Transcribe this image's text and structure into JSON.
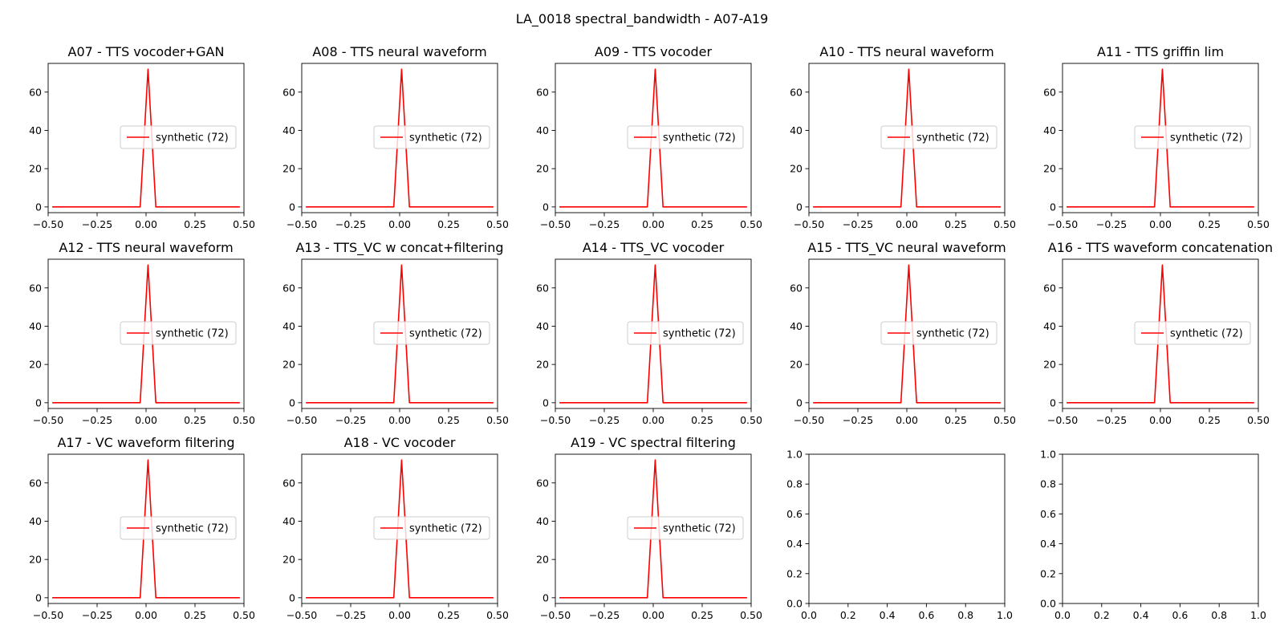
{
  "figure": {
    "suptitle": "LA_0018 spectral_bandwidth - A07-A19"
  },
  "chart_data": [
    {
      "type": "line",
      "title": "A07 - TTS vocoder+GAN",
      "xlim": [
        -0.5,
        0.5
      ],
      "ylim": [
        -3,
        75
      ],
      "xticks": [
        "−0.50",
        "−0.25",
        "0.00",
        "0.25",
        "0.50"
      ],
      "yticks": [
        "0",
        "20",
        "40",
        "60"
      ],
      "legend_position": "center-right",
      "grid": false,
      "series": [
        {
          "name": "synthetic (72)",
          "color": "#ff0000",
          "x": [
            -0.479,
            -0.031,
            -0.03,
            0.01,
            0.05,
            0.051,
            0.479
          ],
          "y": [
            0,
            0,
            0,
            72,
            0,
            0,
            0
          ]
        }
      ]
    },
    {
      "type": "line",
      "title": "A08 - TTS neural waveform",
      "xlim": [
        -0.5,
        0.5
      ],
      "ylim": [
        -3,
        75
      ],
      "xticks": [
        "−0.50",
        "−0.25",
        "0.00",
        "0.25",
        "0.50"
      ],
      "yticks": [
        "0",
        "20",
        "40",
        "60"
      ],
      "legend_position": "center-right",
      "grid": false,
      "series": [
        {
          "name": "synthetic (72)",
          "color": "#ff0000",
          "x": [
            -0.479,
            -0.031,
            -0.03,
            0.01,
            0.05,
            0.051,
            0.479
          ],
          "y": [
            0,
            0,
            0,
            72,
            0,
            0,
            0
          ]
        }
      ]
    },
    {
      "type": "line",
      "title": "A09 - TTS vocoder",
      "xlim": [
        -0.5,
        0.5
      ],
      "ylim": [
        -3,
        75
      ],
      "xticks": [
        "−0.50",
        "−0.25",
        "0.00",
        "0.25",
        "0.50"
      ],
      "yticks": [
        "0",
        "20",
        "40",
        "60"
      ],
      "legend_position": "center-right",
      "grid": false,
      "series": [
        {
          "name": "synthetic (72)",
          "color": "#ff0000",
          "x": [
            -0.479,
            -0.031,
            -0.03,
            0.01,
            0.05,
            0.051,
            0.479
          ],
          "y": [
            0,
            0,
            0,
            72,
            0,
            0,
            0
          ]
        }
      ]
    },
    {
      "type": "line",
      "title": "A10 - TTS neural waveform",
      "xlim": [
        -0.5,
        0.5
      ],
      "ylim": [
        -3,
        75
      ],
      "xticks": [
        "−0.50",
        "−0.25",
        "0.00",
        "0.25",
        "0.50"
      ],
      "yticks": [
        "0",
        "20",
        "40",
        "60"
      ],
      "legend_position": "center-right",
      "grid": false,
      "series": [
        {
          "name": "synthetic (72)",
          "color": "#ff0000",
          "x": [
            -0.479,
            -0.031,
            -0.03,
            0.01,
            0.05,
            0.051,
            0.479
          ],
          "y": [
            0,
            0,
            0,
            72,
            0,
            0,
            0
          ]
        }
      ]
    },
    {
      "type": "line",
      "title": "A11 - TTS griffin lim",
      "xlim": [
        -0.5,
        0.5
      ],
      "ylim": [
        -3,
        75
      ],
      "xticks": [
        "−0.50",
        "−0.25",
        "0.00",
        "0.25",
        "0.50"
      ],
      "yticks": [
        "0",
        "20",
        "40",
        "60"
      ],
      "legend_position": "center-right",
      "grid": false,
      "series": [
        {
          "name": "synthetic (72)",
          "color": "#ff0000",
          "x": [
            -0.479,
            -0.031,
            -0.03,
            0.01,
            0.05,
            0.051,
            0.479
          ],
          "y": [
            0,
            0,
            0,
            72,
            0,
            0,
            0
          ]
        }
      ]
    },
    {
      "type": "line",
      "title": "A12 - TTS neural waveform",
      "xlim": [
        -0.5,
        0.5
      ],
      "ylim": [
        -3,
        75
      ],
      "xticks": [
        "−0.50",
        "−0.25",
        "0.00",
        "0.25",
        "0.50"
      ],
      "yticks": [
        "0",
        "20",
        "40",
        "60"
      ],
      "legend_position": "center-right",
      "grid": false,
      "series": [
        {
          "name": "synthetic (72)",
          "color": "#ff0000",
          "x": [
            -0.479,
            -0.031,
            -0.03,
            0.01,
            0.05,
            0.051,
            0.479
          ],
          "y": [
            0,
            0,
            0,
            72,
            0,
            0,
            0
          ]
        }
      ]
    },
    {
      "type": "line",
      "title": "A13 - TTS_VC w concat+filtering",
      "xlim": [
        -0.5,
        0.5
      ],
      "ylim": [
        -3,
        75
      ],
      "xticks": [
        "−0.50",
        "−0.25",
        "0.00",
        "0.25",
        "0.50"
      ],
      "yticks": [
        "0",
        "20",
        "40",
        "60"
      ],
      "legend_position": "center-right",
      "grid": false,
      "series": [
        {
          "name": "synthetic (72)",
          "color": "#ff0000",
          "x": [
            -0.479,
            -0.031,
            -0.03,
            0.01,
            0.05,
            0.051,
            0.479
          ],
          "y": [
            0,
            0,
            0,
            72,
            0,
            0,
            0
          ]
        }
      ]
    },
    {
      "type": "line",
      "title": "A14 - TTS_VC vocoder",
      "xlim": [
        -0.5,
        0.5
      ],
      "ylim": [
        -3,
        75
      ],
      "xticks": [
        "−0.50",
        "−0.25",
        "0.00",
        "0.25",
        "0.50"
      ],
      "yticks": [
        "0",
        "20",
        "40",
        "60"
      ],
      "legend_position": "center-right",
      "grid": false,
      "series": [
        {
          "name": "synthetic (72)",
          "color": "#ff0000",
          "x": [
            -0.479,
            -0.031,
            -0.03,
            0.01,
            0.05,
            0.051,
            0.479
          ],
          "y": [
            0,
            0,
            0,
            72,
            0,
            0,
            0
          ]
        }
      ]
    },
    {
      "type": "line",
      "title": "A15 - TTS_VC neural waveform",
      "xlim": [
        -0.5,
        0.5
      ],
      "ylim": [
        -3,
        75
      ],
      "xticks": [
        "−0.50",
        "−0.25",
        "0.00",
        "0.25",
        "0.50"
      ],
      "yticks": [
        "0",
        "20",
        "40",
        "60"
      ],
      "legend_position": "center-right",
      "grid": false,
      "series": [
        {
          "name": "synthetic (72)",
          "color": "#ff0000",
          "x": [
            -0.479,
            -0.031,
            -0.03,
            0.01,
            0.05,
            0.051,
            0.479
          ],
          "y": [
            0,
            0,
            0,
            72,
            0,
            0,
            0
          ]
        }
      ]
    },
    {
      "type": "line",
      "title": "A16 - TTS waveform concatenation",
      "xlim": [
        -0.5,
        0.5
      ],
      "ylim": [
        -3,
        75
      ],
      "xticks": [
        "−0.50",
        "−0.25",
        "0.00",
        "0.25",
        "0.50"
      ],
      "yticks": [
        "0",
        "20",
        "40",
        "60"
      ],
      "legend_position": "center-right",
      "grid": false,
      "series": [
        {
          "name": "synthetic (72)",
          "color": "#ff0000",
          "x": [
            -0.479,
            -0.031,
            -0.03,
            0.01,
            0.05,
            0.051,
            0.479
          ],
          "y": [
            0,
            0,
            0,
            72,
            0,
            0,
            0
          ]
        }
      ]
    },
    {
      "type": "line",
      "title": "A17 - VC waveform filtering",
      "xlim": [
        -0.5,
        0.5
      ],
      "ylim": [
        -3,
        75
      ],
      "xticks": [
        "−0.50",
        "−0.25",
        "0.00",
        "0.25",
        "0.50"
      ],
      "yticks": [
        "0",
        "20",
        "40",
        "60"
      ],
      "legend_position": "center-right",
      "grid": false,
      "series": [
        {
          "name": "synthetic (72)",
          "color": "#ff0000",
          "x": [
            -0.479,
            -0.031,
            -0.03,
            0.01,
            0.05,
            0.051,
            0.479
          ],
          "y": [
            0,
            0,
            0,
            72,
            0,
            0,
            0
          ]
        }
      ]
    },
    {
      "type": "line",
      "title": "A18 - VC vocoder",
      "xlim": [
        -0.5,
        0.5
      ],
      "ylim": [
        -3,
        75
      ],
      "xticks": [
        "−0.50",
        "−0.25",
        "0.00",
        "0.25",
        "0.50"
      ],
      "yticks": [
        "0",
        "20",
        "40",
        "60"
      ],
      "legend_position": "center-right",
      "grid": false,
      "series": [
        {
          "name": "synthetic (72)",
          "color": "#ff0000",
          "x": [
            -0.479,
            -0.031,
            -0.03,
            0.01,
            0.05,
            0.051,
            0.479
          ],
          "y": [
            0,
            0,
            0,
            72,
            0,
            0,
            0
          ]
        }
      ]
    },
    {
      "type": "line",
      "title": "A19 - VC spectral filtering",
      "xlim": [
        -0.5,
        0.5
      ],
      "ylim": [
        -3,
        75
      ],
      "xticks": [
        "−0.50",
        "−0.25",
        "0.00",
        "0.25",
        "0.50"
      ],
      "yticks": [
        "0",
        "20",
        "40",
        "60"
      ],
      "legend_position": "center-right",
      "grid": false,
      "series": [
        {
          "name": "synthetic (72)",
          "color": "#ff0000",
          "x": [
            -0.479,
            -0.031,
            -0.03,
            0.01,
            0.05,
            0.051,
            0.479
          ],
          "y": [
            0,
            0,
            0,
            72,
            0,
            0,
            0
          ]
        }
      ]
    },
    {
      "type": "line",
      "title": "",
      "xlim": [
        0,
        1
      ],
      "ylim": [
        0,
        1
      ],
      "xticks": [
        "0.0",
        "0.2",
        "0.4",
        "0.6",
        "0.8",
        "1.0"
      ],
      "yticks": [
        "0.0",
        "0.2",
        "0.4",
        "0.6",
        "0.8",
        "1.0"
      ],
      "grid": false,
      "series": []
    },
    {
      "type": "line",
      "title": "",
      "xlim": [
        0,
        1
      ],
      "ylim": [
        0,
        1
      ],
      "xticks": [
        "0.0",
        "0.2",
        "0.4",
        "0.6",
        "0.8",
        "1.0"
      ],
      "yticks": [
        "0.0",
        "0.2",
        "0.4",
        "0.6",
        "0.8",
        "1.0"
      ],
      "grid": false,
      "series": []
    }
  ]
}
